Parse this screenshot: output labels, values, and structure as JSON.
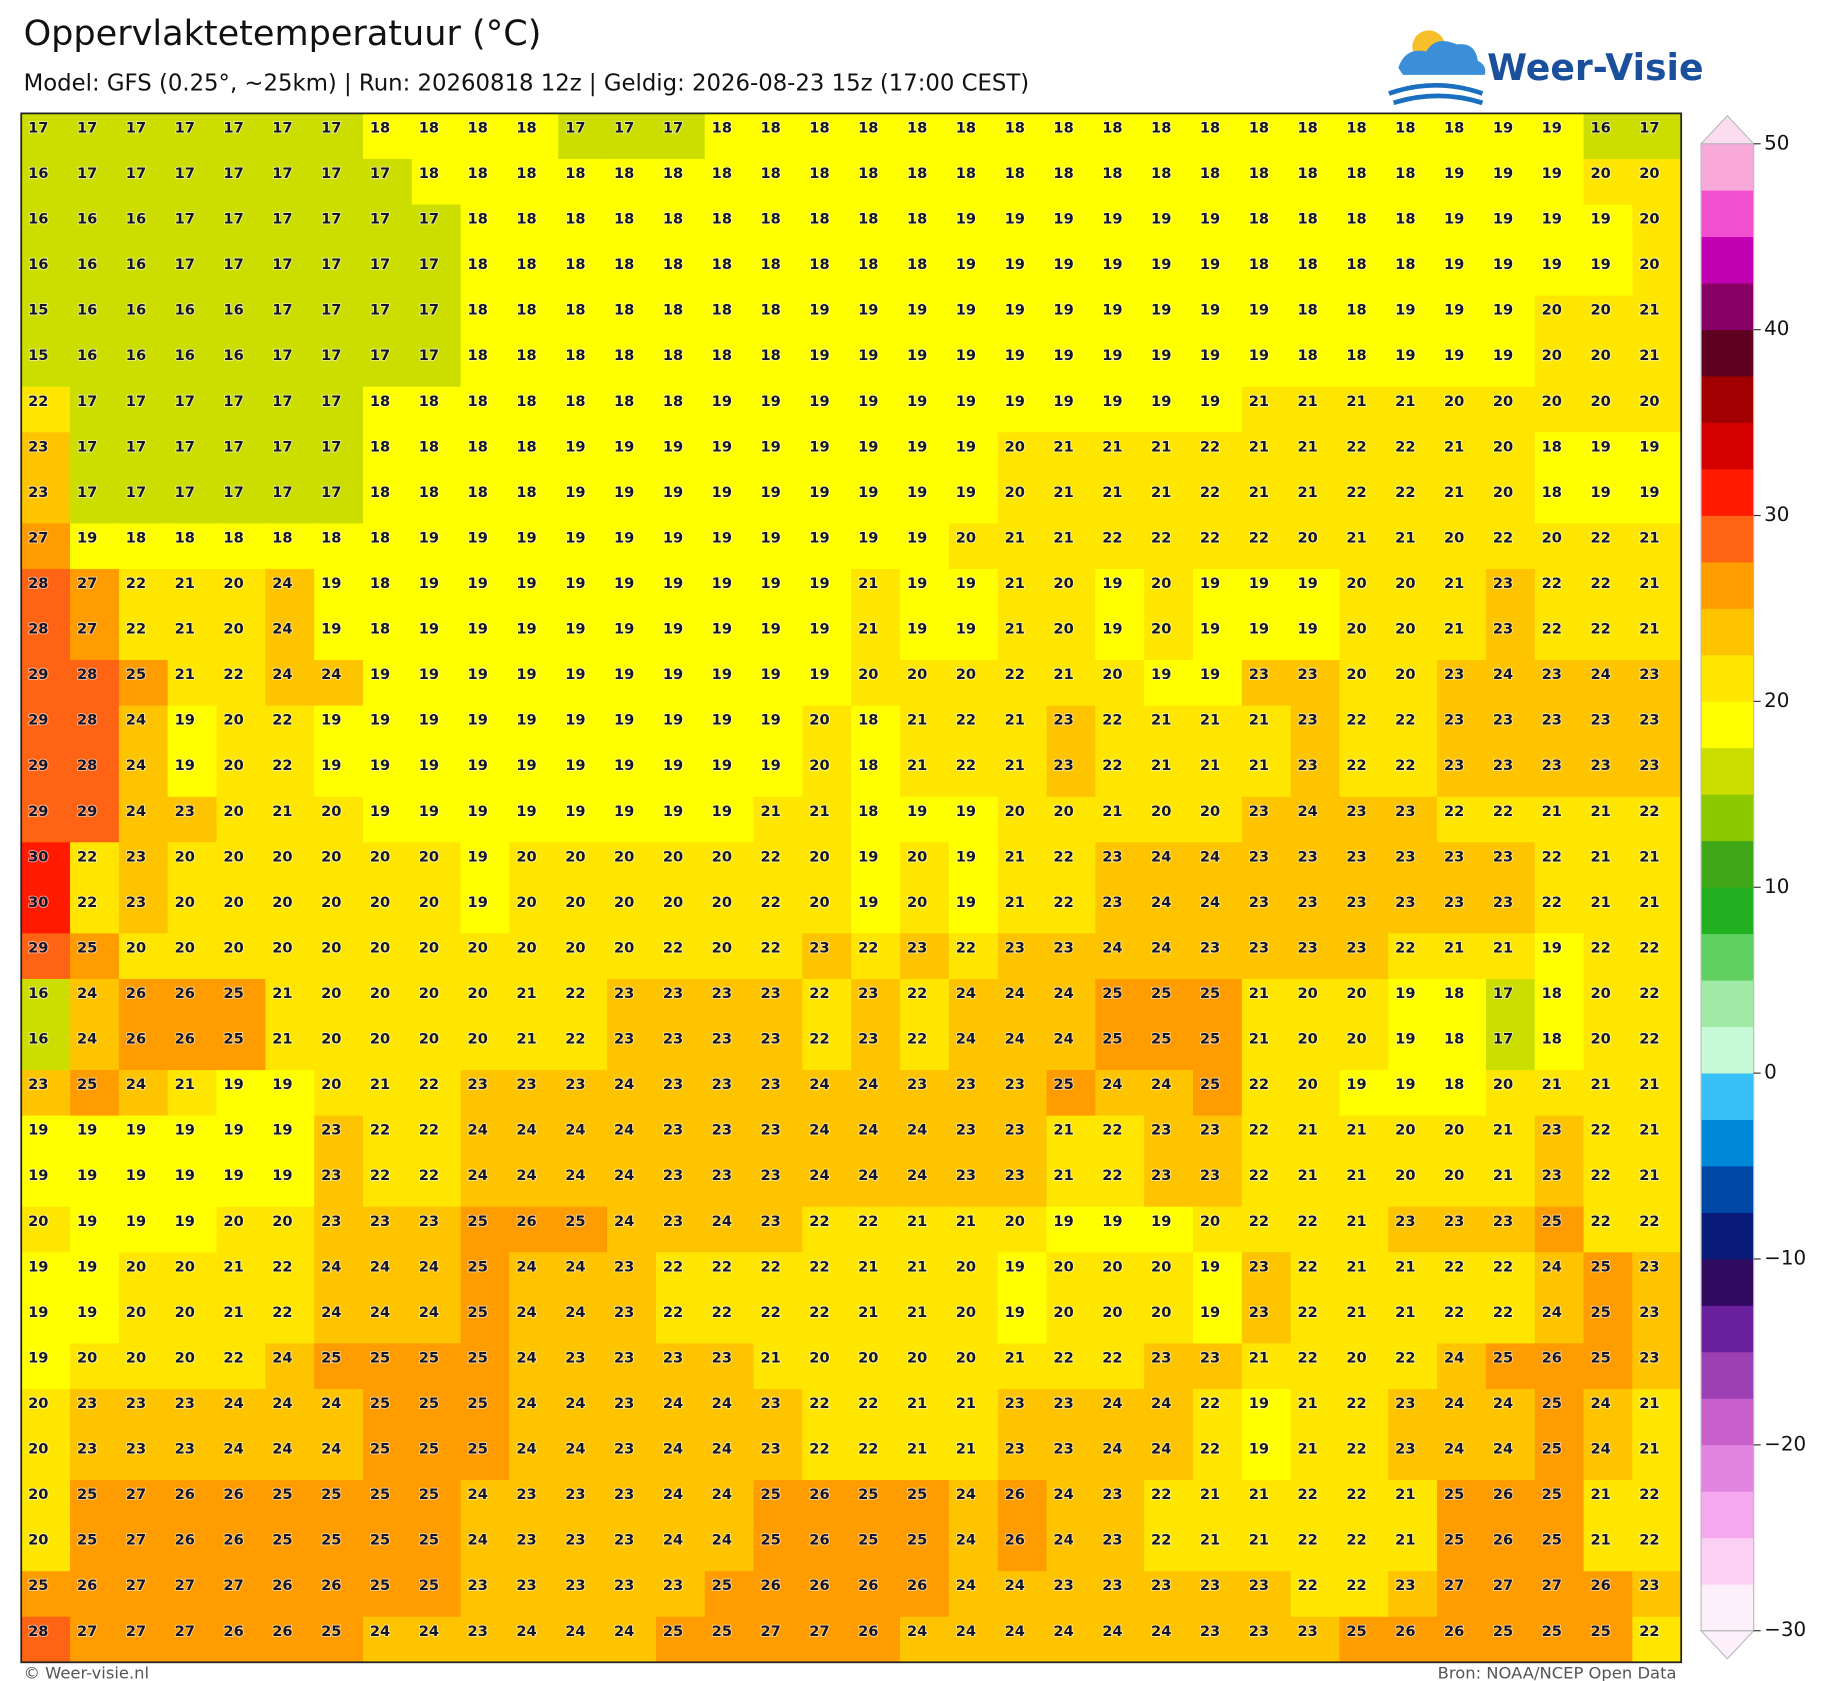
{
  "header": {
    "title": "Oppervlaktetemperatuur (°C)",
    "subtitle": "Model: GFS (0.25°, ~25km)  |  Run: 20260818 12z  |  Geldig: 2026-08-23 15z (17:00 CEST)",
    "logo_text": "Weer-Visie"
  },
  "chart_data": {
    "type": "heatmap",
    "values": [
      [
        17,
        17,
        17,
        17,
        17,
        17,
        17,
        18,
        18,
        18,
        18,
        17,
        17,
        17,
        18,
        18,
        18,
        18,
        18,
        18,
        18,
        18,
        18,
        18,
        18,
        18,
        18,
        18,
        18,
        18,
        19,
        19,
        16,
        17
      ],
      [
        16,
        17,
        17,
        17,
        17,
        17,
        17,
        17,
        18,
        18,
        18,
        18,
        18,
        18,
        18,
        18,
        18,
        18,
        18,
        18,
        18,
        18,
        18,
        18,
        18,
        18,
        18,
        18,
        18,
        19,
        19,
        19,
        20,
        20
      ],
      [
        16,
        16,
        16,
        17,
        17,
        17,
        17,
        17,
        17,
        18,
        18,
        18,
        18,
        18,
        18,
        18,
        18,
        18,
        18,
        19,
        19,
        19,
        19,
        19,
        19,
        18,
        18,
        18,
        18,
        19,
        19,
        19,
        19,
        20
      ],
      [
        16,
        16,
        16,
        17,
        17,
        17,
        17,
        17,
        17,
        18,
        18,
        18,
        18,
        18,
        18,
        18,
        18,
        18,
        18,
        19,
        19,
        19,
        19,
        19,
        19,
        18,
        18,
        18,
        18,
        19,
        19,
        19,
        19,
        20
      ],
      [
        15,
        16,
        16,
        16,
        16,
        17,
        17,
        17,
        17,
        18,
        18,
        18,
        18,
        18,
        18,
        18,
        19,
        19,
        19,
        19,
        19,
        19,
        19,
        19,
        19,
        19,
        18,
        18,
        19,
        19,
        19,
        20,
        20,
        21
      ],
      [
        15,
        16,
        16,
        16,
        16,
        17,
        17,
        17,
        17,
        18,
        18,
        18,
        18,
        18,
        18,
        18,
        19,
        19,
        19,
        19,
        19,
        19,
        19,
        19,
        19,
        19,
        18,
        18,
        19,
        19,
        19,
        20,
        20,
        21
      ],
      [
        22,
        17,
        17,
        17,
        17,
        17,
        17,
        18,
        18,
        18,
        18,
        18,
        18,
        18,
        19,
        19,
        19,
        19,
        19,
        19,
        19,
        19,
        19,
        19,
        19,
        21,
        21,
        21,
        21,
        20,
        20,
        20,
        20,
        20
      ],
      [
        23,
        17,
        17,
        17,
        17,
        17,
        17,
        18,
        18,
        18,
        18,
        19,
        19,
        19,
        19,
        19,
        19,
        19,
        19,
        19,
        20,
        21,
        21,
        21,
        22,
        21,
        21,
        22,
        22,
        21,
        20,
        18,
        19,
        19
      ],
      [
        23,
        17,
        17,
        17,
        17,
        17,
        17,
        18,
        18,
        18,
        18,
        19,
        19,
        19,
        19,
        19,
        19,
        19,
        19,
        19,
        20,
        21,
        21,
        21,
        22,
        21,
        21,
        22,
        22,
        21,
        20,
        18,
        19,
        19
      ],
      [
        27,
        19,
        18,
        18,
        18,
        18,
        18,
        18,
        19,
        19,
        19,
        19,
        19,
        19,
        19,
        19,
        19,
        19,
        19,
        20,
        21,
        21,
        22,
        22,
        22,
        22,
        20,
        21,
        21,
        20,
        22,
        20,
        22,
        21
      ],
      [
        28,
        27,
        22,
        21,
        20,
        24,
        19,
        18,
        19,
        19,
        19,
        19,
        19,
        19,
        19,
        19,
        19,
        21,
        19,
        19,
        21,
        20,
        19,
        20,
        19,
        19,
        19,
        20,
        20,
        21,
        23,
        22,
        22,
        21
      ],
      [
        28,
        27,
        22,
        21,
        20,
        24,
        19,
        18,
        19,
        19,
        19,
        19,
        19,
        19,
        19,
        19,
        19,
        21,
        19,
        19,
        21,
        20,
        19,
        20,
        19,
        19,
        19,
        20,
        20,
        21,
        23,
        22,
        22,
        21
      ],
      [
        29,
        28,
        25,
        21,
        22,
        24,
        24,
        19,
        19,
        19,
        19,
        19,
        19,
        19,
        19,
        19,
        19,
        20,
        20,
        20,
        22,
        21,
        20,
        19,
        19,
        23,
        23,
        20,
        20,
        23,
        24,
        23,
        24,
        23
      ],
      [
        29,
        28,
        24,
        19,
        20,
        22,
        19,
        19,
        19,
        19,
        19,
        19,
        19,
        19,
        19,
        19,
        20,
        18,
        21,
        22,
        21,
        23,
        22,
        21,
        21,
        21,
        23,
        22,
        22,
        23,
        23,
        23,
        23,
        23
      ],
      [
        29,
        28,
        24,
        19,
        20,
        22,
        19,
        19,
        19,
        19,
        19,
        19,
        19,
        19,
        19,
        19,
        20,
        18,
        21,
        22,
        21,
        23,
        22,
        21,
        21,
        21,
        23,
        22,
        22,
        23,
        23,
        23,
        23,
        23
      ],
      [
        29,
        29,
        24,
        23,
        20,
        21,
        20,
        19,
        19,
        19,
        19,
        19,
        19,
        19,
        19,
        21,
        21,
        18,
        19,
        19,
        20,
        20,
        21,
        20,
        20,
        23,
        24,
        23,
        23,
        22,
        22,
        21,
        21,
        22
      ],
      [
        30,
        22,
        23,
        20,
        20,
        20,
        20,
        20,
        20,
        19,
        20,
        20,
        20,
        20,
        20,
        22,
        20,
        19,
        20,
        19,
        21,
        22,
        23,
        24,
        24,
        23,
        23,
        23,
        23,
        23,
        23,
        22,
        21,
        21
      ],
      [
        30,
        22,
        23,
        20,
        20,
        20,
        20,
        20,
        20,
        19,
        20,
        20,
        20,
        20,
        20,
        22,
        20,
        19,
        20,
        19,
        21,
        22,
        23,
        24,
        24,
        23,
        23,
        23,
        23,
        23,
        23,
        22,
        21,
        21
      ],
      [
        29,
        25,
        20,
        20,
        20,
        20,
        20,
        20,
        20,
        20,
        20,
        20,
        20,
        22,
        20,
        22,
        23,
        22,
        23,
        22,
        23,
        23,
        24,
        24,
        23,
        23,
        23,
        23,
        22,
        21,
        21,
        19,
        22,
        22
      ],
      [
        16,
        24,
        26,
        26,
        25,
        21,
        20,
        20,
        20,
        20,
        21,
        22,
        23,
        23,
        23,
        23,
        22,
        23,
        22,
        24,
        24,
        24,
        25,
        25,
        25,
        21,
        20,
        20,
        19,
        18,
        17,
        18,
        20,
        22
      ],
      [
        16,
        24,
        26,
        26,
        25,
        21,
        20,
        20,
        20,
        20,
        21,
        22,
        23,
        23,
        23,
        23,
        22,
        23,
        22,
        24,
        24,
        24,
        25,
        25,
        25,
        21,
        20,
        20,
        19,
        18,
        17,
        18,
        20,
        22
      ],
      [
        23,
        25,
        24,
        21,
        19,
        19,
        20,
        21,
        22,
        23,
        23,
        23,
        24,
        23,
        23,
        23,
        24,
        24,
        23,
        23,
        23,
        25,
        24,
        24,
        25,
        22,
        20,
        19,
        19,
        18,
        20,
        21,
        21,
        21
      ],
      [
        19,
        19,
        19,
        19,
        19,
        19,
        23,
        22,
        22,
        24,
        24,
        24,
        24,
        23,
        23,
        23,
        24,
        24,
        24,
        23,
        23,
        21,
        22,
        23,
        23,
        22,
        21,
        21,
        20,
        20,
        21,
        23,
        22,
        21
      ],
      [
        19,
        19,
        19,
        19,
        19,
        19,
        23,
        22,
        22,
        24,
        24,
        24,
        24,
        23,
        23,
        23,
        24,
        24,
        24,
        23,
        23,
        21,
        22,
        23,
        23,
        22,
        21,
        21,
        20,
        20,
        21,
        23,
        22,
        21
      ],
      [
        20,
        19,
        19,
        19,
        20,
        20,
        23,
        23,
        23,
        25,
        26,
        25,
        24,
        23,
        24,
        23,
        22,
        22,
        21,
        21,
        20,
        19,
        19,
        19,
        20,
        22,
        22,
        21,
        23,
        23,
        23,
        25,
        22,
        22
      ],
      [
        19,
        19,
        20,
        20,
        21,
        22,
        24,
        24,
        24,
        25,
        24,
        24,
        23,
        22,
        22,
        22,
        22,
        21,
        21,
        20,
        19,
        20,
        20,
        20,
        19,
        23,
        22,
        21,
        21,
        22,
        22,
        24,
        25,
        23
      ],
      [
        19,
        19,
        20,
        20,
        21,
        22,
        24,
        24,
        24,
        25,
        24,
        24,
        23,
        22,
        22,
        22,
        22,
        21,
        21,
        20,
        19,
        20,
        20,
        20,
        19,
        23,
        22,
        21,
        21,
        22,
        22,
        24,
        25,
        23
      ],
      [
        19,
        20,
        20,
        20,
        22,
        24,
        25,
        25,
        25,
        25,
        24,
        23,
        23,
        23,
        23,
        21,
        20,
        20,
        20,
        20,
        21,
        22,
        22,
        23,
        23,
        21,
        22,
        20,
        22,
        24,
        25,
        26,
        25,
        23
      ],
      [
        20,
        23,
        23,
        23,
        24,
        24,
        24,
        25,
        25,
        25,
        24,
        24,
        23,
        24,
        24,
        23,
        22,
        22,
        21,
        21,
        23,
        23,
        24,
        24,
        22,
        19,
        21,
        22,
        23,
        24,
        24,
        25,
        24,
        21
      ],
      [
        20,
        23,
        23,
        23,
        24,
        24,
        24,
        25,
        25,
        25,
        24,
        24,
        23,
        24,
        24,
        23,
        22,
        22,
        21,
        21,
        23,
        23,
        24,
        24,
        22,
        19,
        21,
        22,
        23,
        24,
        24,
        25,
        24,
        21
      ],
      [
        20,
        25,
        27,
        26,
        26,
        25,
        25,
        25,
        25,
        24,
        23,
        23,
        23,
        24,
        24,
        25,
        26,
        25,
        25,
        24,
        26,
        24,
        23,
        22,
        21,
        21,
        22,
        22,
        21,
        25,
        26,
        25,
        21,
        22
      ],
      [
        20,
        25,
        27,
        26,
        26,
        25,
        25,
        25,
        25,
        24,
        23,
        23,
        23,
        24,
        24,
        25,
        26,
        25,
        25,
        24,
        26,
        24,
        23,
        22,
        21,
        21,
        22,
        22,
        21,
        25,
        26,
        25,
        21,
        22
      ],
      [
        25,
        26,
        27,
        27,
        27,
        26,
        26,
        25,
        25,
        23,
        23,
        23,
        23,
        23,
        25,
        26,
        26,
        26,
        26,
        24,
        24,
        23,
        23,
        23,
        23,
        23,
        22,
        22,
        23,
        27,
        27,
        27,
        26,
        23
      ],
      [
        28,
        27,
        27,
        27,
        26,
        26,
        25,
        24,
        24,
        23,
        24,
        24,
        24,
        25,
        25,
        27,
        27,
        26,
        24,
        24,
        24,
        24,
        24,
        24,
        23,
        23,
        23,
        25,
        26,
        26,
        25,
        25,
        25,
        22
      ]
    ],
    "colorbar": {
      "lim": [
        -30,
        50
      ],
      "ticks": [
        50,
        40,
        30,
        20,
        10,
        0,
        {
          "value": -10,
          "label": "−10"
        },
        {
          "value": -20,
          "label": "−20"
        },
        {
          "value": -30,
          "label": "−30"
        }
      ],
      "colors": [
        "#fdf0fb",
        "#fcd0f5",
        "#f5a8ee",
        "#e285e0",
        "#c860cc",
        "#9c40b4",
        "#6a209c",
        "#300a60",
        "#0a1a78",
        "#0048a8",
        "#0088d8",
        "#38c0f8",
        "#c8fad8",
        "#a0eaa8",
        "#60d060",
        "#20b020",
        "#40a818",
        "#8cc800",
        "#ccdd00",
        "#ffff00",
        "#ffe600",
        "#ffc400",
        "#ff9c00",
        "#ff6414",
        "#ff1a00",
        "#d40000",
        "#a00000",
        "#600020",
        "#880066",
        "#c000b0",
        "#f050d0",
        "#f9a8da"
      ]
    }
  },
  "footer": {
    "left": "© Weer-visie.nl",
    "right": "Bron: NOAA/NCEP Open Data"
  }
}
